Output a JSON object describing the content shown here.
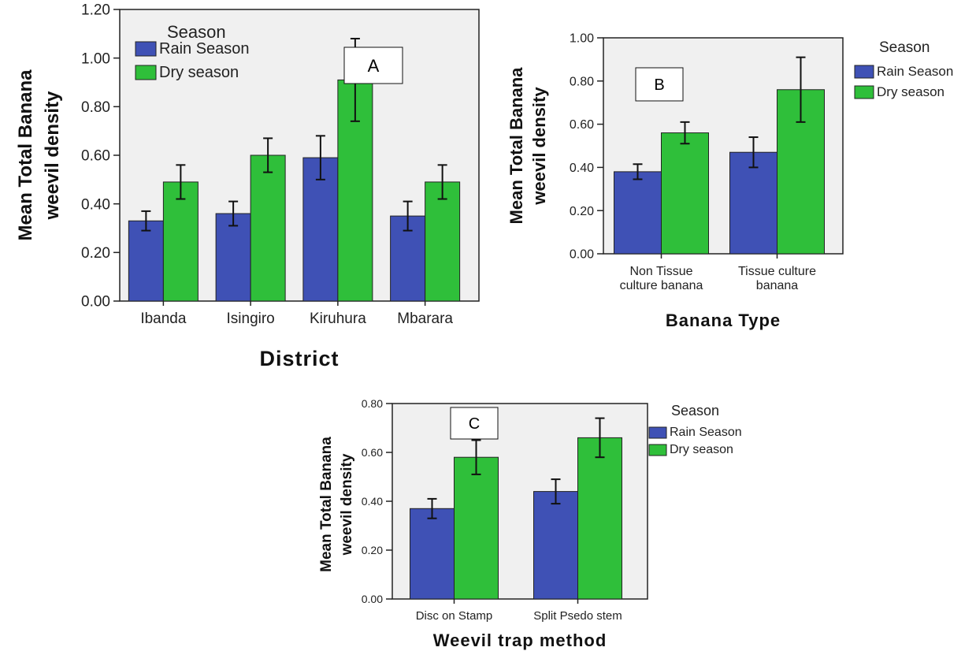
{
  "colors": {
    "rain": "#3f51b5",
    "dry": "#2fbf3a",
    "plot_bg": "#f0f0f0"
  },
  "chart_data": [
    {
      "type": "bar",
      "panel_label": "A",
      "categories": [
        "Ibanda",
        "Isingiro",
        "Kiruhura",
        "Mbarara"
      ],
      "series": [
        {
          "name": "Rain Season",
          "values": [
            0.33,
            0.36,
            0.59,
            0.35
          ],
          "error": [
            0.04,
            0.05,
            0.09,
            0.06
          ]
        },
        {
          "name": "Dry season",
          "values": [
            0.49,
            0.6,
            0.91,
            0.49
          ],
          "error": [
            0.07,
            0.07,
            0.17,
            0.07
          ]
        }
      ],
      "xlabel": "District",
      "ylabel": [
        "Mean Total Banana",
        "weevil density"
      ],
      "ylim": [
        0,
        1.2
      ],
      "yticks": [
        "0.00",
        "0.20",
        "0.40",
        "0.60",
        "0.80",
        "1.00",
        "1.20"
      ],
      "legend_title": "Season",
      "legend_placement": "top-left inside"
    },
    {
      "type": "bar",
      "panel_label": "B",
      "categories": [
        [
          "Non Tissue",
          "culture banana"
        ],
        [
          "Tissue culture",
          "banana"
        ]
      ],
      "series": [
        {
          "name": "Rain Season",
          "values": [
            0.38,
            0.47
          ],
          "error": [
            0.035,
            0.07
          ]
        },
        {
          "name": "Dry season",
          "values": [
            0.56,
            0.76
          ],
          "error": [
            0.05,
            0.15
          ]
        }
      ],
      "xlabel": "Banana Type",
      "ylabel": [
        "Mean Total Banana",
        "weevil density"
      ],
      "ylim": [
        0,
        1.0
      ],
      "yticks": [
        "0.00",
        "0.20",
        "0.40",
        "0.60",
        "0.80",
        "1.00"
      ],
      "legend_title": "Season",
      "legend_placement": "right outside"
    },
    {
      "type": "bar",
      "panel_label": "C",
      "categories": [
        "Disc on Stamp",
        "Split Psedo stem"
      ],
      "series": [
        {
          "name": "Rain Season",
          "values": [
            0.37,
            0.44
          ],
          "error": [
            0.04,
            0.05
          ]
        },
        {
          "name": "Dry season",
          "values": [
            0.58,
            0.66
          ],
          "error": [
            0.07,
            0.08
          ]
        }
      ],
      "xlabel": "Weevil trap method",
      "ylabel": [
        "Mean Total Banana",
        "weevil density"
      ],
      "ylim": [
        0,
        0.8
      ],
      "yticks": [
        "0.00",
        "0.20",
        "0.40",
        "0.60",
        "0.80"
      ],
      "legend_title": "Season",
      "legend_placement": "right outside"
    }
  ]
}
